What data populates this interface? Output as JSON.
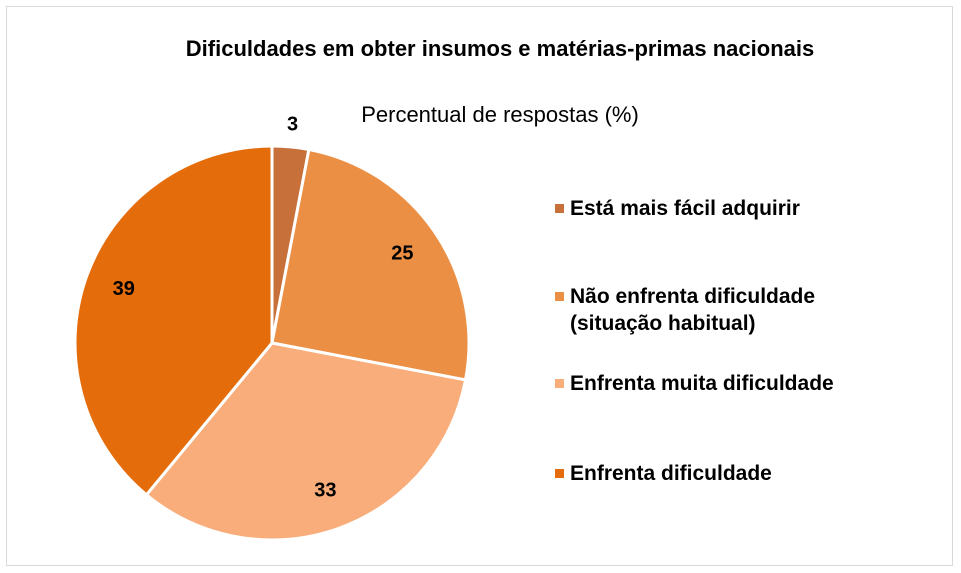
{
  "chart_data": {
    "type": "pie",
    "title": "Dificuldades em obter insumos e matérias-primas nacionais",
    "subtitle": "Percentual de respostas (%)",
    "categories": [
      "Está mais fácil adquirir",
      "Não enfrenta dificuldade (situação habitual)",
      "Enfrenta muita dificuldade",
      "Enfrenta dificuldade"
    ],
    "values": [
      3,
      25,
      33,
      39
    ],
    "colors": [
      "#c8703a",
      "#eb8f45",
      "#f8ad7b",
      "#e46c0a"
    ],
    "legend": "right"
  }
}
